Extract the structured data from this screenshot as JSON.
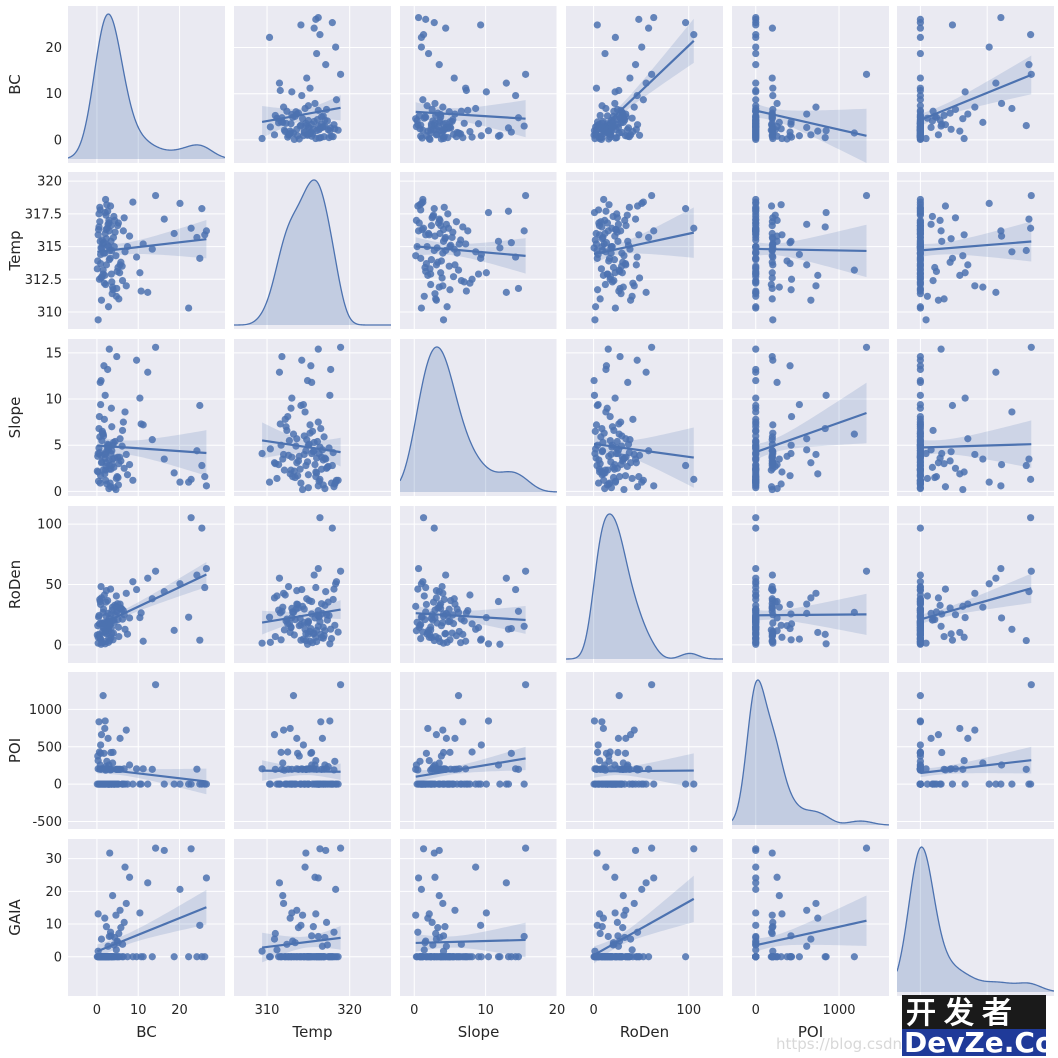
{
  "chart_data": {
    "type": "scatter",
    "layout": "pairplot",
    "variables": [
      "BC",
      "Temp",
      "Slope",
      "RoDen",
      "POI",
      "GAIA"
    ],
    "diagonal": "kde",
    "off_diagonal": "scatter with linear regression fit and confidence band",
    "colors": {
      "panel_bg": "#eaeaf2",
      "grid": "#ffffff",
      "series": "#4c72b0"
    },
    "grid": true,
    "axes": {
      "BC": {
        "range": [
          -7,
          31
        ],
        "ticks": [
          0,
          10,
          20
        ],
        "row_range": [
          -5,
          29
        ],
        "row_ticks": [
          0,
          10,
          20
        ]
      },
      "Temp": {
        "range": [
          306,
          325
        ],
        "ticks": [
          310,
          320
        ],
        "row_range": [
          308.7,
          320.7
        ],
        "row_ticks": [
          310.0,
          312.5,
          315.0,
          317.5,
          320.0
        ]
      },
      "Slope": {
        "range": [
          -2,
          20
        ],
        "ticks": [
          0,
          10,
          20
        ],
        "row_range": [
          -0.5,
          16.5
        ],
        "row_ticks": [
          0,
          5,
          10,
          15
        ]
      },
      "RoDen": {
        "range": [
          -29,
          136
        ],
        "ticks": [
          0,
          100
        ],
        "row_range": [
          -15,
          115
        ],
        "row_ticks": [
          0,
          50,
          100
        ]
      },
      "POI": {
        "range": [
          -285,
          1600
        ],
        "ticks": [
          0,
          1000
        ],
        "row_range": [
          -600,
          1500
        ],
        "row_ticks": [
          -500,
          0,
          500,
          1000
        ]
      },
      "GAIA": {
        "range": [
          -7,
          40
        ],
        "ticks": [
          0,
          20
        ],
        "row_range": [
          -12,
          36
        ],
        "row_ticks": [
          0,
          10,
          20,
          30
        ]
      }
    },
    "data": {
      "BC": [
        2.1,
        3.4,
        0.8,
        5.6,
        1.2,
        4.7,
        0.5,
        7.9,
        2.8,
        3.3,
        0.2,
        6.4,
        1.9,
        2.6,
        4.1,
        0.9,
        3.8,
        5.2,
        1.5,
        2.3,
        8.7,
        0.6,
        3.1,
        4.4,
        1.1,
        2.9,
        6.1,
        0.3,
        3.6,
        5.0,
        14.2,
        9.6,
        12.3,
        2.0,
        1.7,
        4.9,
        0.7,
        3.0,
        7.1,
        2.4,
        1.3,
        5.8,
        0.4,
        3.9,
        2.2,
        6.8,
        1.0,
        4.2,
        2.7,
        0.1,
        22.8,
        25.4,
        26.5,
        24.2,
        20.1,
        16.3,
        13.4,
        18.7,
        10.4,
        11.2,
        3.5,
        1.6,
        5.3,
        2.5,
        0.9,
        4.0,
        6.6,
        1.8,
        3.2,
        2.0,
        0.7,
        5.1,
        1.4,
        3.7,
        2.9,
        4.6,
        1.2,
        0.5,
        7.4,
        2.3,
        3.0,
        1.0,
        4.8,
        2.6,
        0.8,
        6.2,
        3.4,
        1.9,
        5.5,
        2.1,
        24.9,
        22.2,
        26.1,
        10.7,
        0.3,
        2.8,
        4.3,
        1.5,
        3.6,
        2.2
      ],
      "Temp": [
        312.1,
        315.4,
        317.8,
        313.6,
        314.9,
        311.2,
        316.5,
        315.8,
        310.4,
        318.1,
        313.9,
        316.2,
        312.8,
        315.1,
        317.3,
        314.4,
        311.9,
        316.8,
        313.2,
        315.6,
        318.4,
        312.5,
        314.7,
        316.1,
        310.9,
        317.0,
        313.5,
        315.9,
        312.3,
        316.6,
        318.9,
        314.2,
        311.5,
        317.6,
        315.3,
        313.1,
        316.9,
        314.0,
        312.0,
        318.2,
        315.5,
        313.8,
        316.3,
        311.7,
        317.4,
        314.6,
        312.6,
        315.0,
        316.7,
        313.3,
        316.4,
        317.9,
        316.2,
        315.7,
        318.3,
        317.1,
        314.8,
        316.0,
        313.0,
        315.2,
        312.9,
        314.5,
        311.0,
        316.4,
        313.7,
        315.7,
        317.2,
        312.2,
        314.1,
        316.0,
        318.0,
        313.4,
        315.2,
        311.4,
        316.8,
        314.3,
        312.7,
        317.5,
        315.0,
        313.6,
        316.2,
        314.9,
        311.8,
        317.7,
        315.4,
        312.4,
        316.6,
        314.5,
        313.0,
        318.6,
        314.1,
        310.3,
        315.9,
        311.6,
        309.4,
        315.0,
        317.0,
        312.9,
        314.7,
        316.3
      ],
      "Slope": [
        2.3,
        4.1,
        0.9,
        5.7,
        3.2,
        1.4,
        6.8,
        2.9,
        4.6,
        0.5,
        3.8,
        7.5,
        1.9,
        5.1,
        2.6,
        9.4,
        3.5,
        0.7,
        6.2,
        4.3,
        1.2,
        8.1,
        2.8,
        5.4,
        3.1,
        0.3,
        4.9,
        2.1,
        7.0,
        3.7,
        15.6,
        14.2,
        12.9,
        10.4,
        13.6,
        1.6,
        5.9,
        2.4,
        4.0,
        0.8,
        6.5,
        3.3,
        1.1,
        5.0,
        2.7,
        8.6,
        3.9,
        0.4,
        4.5,
        2.2,
        1.3,
        2.8,
        0.6,
        4.4,
        1.0,
        3.5,
        5.6,
        2.0,
        10.1,
        7.2,
        9.0,
        6.0,
        3.0,
        4.8,
        1.7,
        5.3,
        2.5,
        7.8,
        0.9,
        3.6,
        4.2,
        1.5,
        6.3,
        2.9,
        3.4,
        0.2,
        5.5,
        4.7,
        1.8,
        3.1,
        15.4,
        12.0,
        14.6,
        13.2,
        11.8,
        6.6,
        2.4,
        4.0,
        3.7,
        1.2,
        9.3,
        1.0,
        1.6,
        7.3,
        4.1,
        5.0,
        3.6,
        2.3,
        4.4,
        4.1
      ],
      "RoDen": [
        12.4,
        25.6,
        5.2,
        33.8,
        18.1,
        40.5,
        8.7,
        22.3,
        2.1,
        46.2,
        15.9,
        28.4,
        10.3,
        36.7,
        20.5,
        4.8,
        31.2,
        14.6,
        26.9,
        9.1,
        52.3,
        17.4,
        3.6,
        24.8,
        38.9,
        11.7,
        29.5,
        6.3,
        19.8,
        34.1,
        61.0,
        45.8,
        55.2,
        0.9,
        13.5,
        27.3,
        7.6,
        21.9,
        42.7,
        16.2,
        1.8,
        30.6,
        23.1,
        4.2,
        35.4,
        12.9,
        48.3,
        18.7,
        26.1,
        8.2,
        105.3,
        96.7,
        63.2,
        57.8,
        50.6,
        44.1,
        38.2,
        12.0,
        22.6,
        3.0,
        14.3,
        29.7,
        6.9,
        19.2,
        33.5,
        9.8,
        25.0,
        41.3,
        16.8,
        2.7,
        37.6,
        20.9,
        11.1,
        28.8,
        5.5,
        31.9,
        17.6,
        24.3,
        8.9,
        44.9,
        15.4,
        0.5,
        27.8,
        13.0,
        35.9,
        21.3,
        6.1,
        18.4,
        30.2,
        10.6,
        3.9,
        22.9,
        47.5,
        26.5,
        1.4,
        19.6,
        32.7,
        14.8,
        9.4,
        23.7
      ],
      "POI": [
        187,
        423,
        0,
        612,
        205,
        0,
        834,
        256,
        0,
        190,
        376,
        0,
        745,
        200,
        0,
        524,
        283,
        0,
        1184,
        205,
        0,
        430,
        198,
        0,
        662,
        257,
        0,
        315,
        0,
        198,
        1330,
        205,
        0,
        845,
        412,
        0,
        200,
        0,
        723,
        305,
        0,
        198,
        0,
        425,
        234,
        0,
        198,
        0,
        612,
        0,
        0,
        0,
        0,
        200,
        0,
        0,
        198,
        0,
        0,
        205,
        0,
        0,
        198,
        0,
        412,
        0,
        205,
        0,
        0,
        198,
        0,
        0,
        205,
        0,
        0,
        198,
        0,
        0,
        0,
        205,
        0,
        0,
        198,
        0,
        256,
        0,
        0,
        0,
        198,
        0,
        0,
        0,
        0,
        0,
        205,
        0,
        0,
        0,
        198,
        0
      ],
      "GAIA": [
        0,
        6.4,
        0,
        14.2,
        0,
        2.1,
        0,
        24.3,
        0,
        7.5,
        0,
        0,
        11.8,
        0,
        3.6,
        0,
        18.7,
        0,
        0,
        9.2,
        0,
        0,
        31.7,
        0,
        5.4,
        0,
        0,
        13.1,
        0,
        0,
        33.2,
        0,
        22.6,
        0,
        0,
        4.8,
        0,
        0,
        16.3,
        0,
        0,
        8.9,
        0,
        0,
        0,
        27.4,
        0,
        0,
        3.2,
        0,
        33.0,
        0,
        24.1,
        0,
        20.6,
        32.5,
        0,
        0,
        13.4,
        0,
        0,
        0,
        7.1,
        0,
        0,
        0,
        10.5,
        0,
        0,
        0,
        0,
        4.3,
        0,
        0,
        0,
        12.7,
        0,
        0,
        0,
        0,
        6.2,
        0,
        0,
        0,
        0,
        3.8,
        0,
        0,
        0,
        0,
        9.6,
        0,
        0,
        0,
        1.7,
        0,
        5.9,
        0,
        0,
        0
      ]
    }
  },
  "watermark": {
    "url": "https://blog.csdn.n",
    "cn": "开发者",
    "en": "DevZe.CoM"
  }
}
